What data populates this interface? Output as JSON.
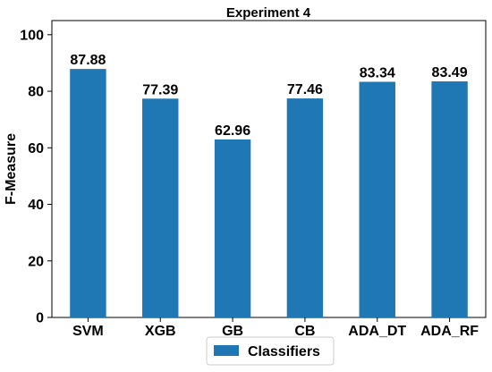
{
  "chart_data": {
    "type": "bar",
    "title": "Experiment 4",
    "xlabel": "",
    "ylabel": "F-Measure",
    "categories": [
      "SVM",
      "XGB",
      "GB",
      "CB",
      "ADA_DT",
      "ADA_RF"
    ],
    "series": [
      {
        "name": "Classifiers",
        "values": [
          87.88,
          77.39,
          62.96,
          77.46,
          83.34,
          83.49
        ],
        "color": "#1f77b4"
      }
    ],
    "data_labels": [
      "87.88",
      "77.39",
      "62.96",
      "77.46",
      "83.34",
      "83.49"
    ],
    "ylim": [
      0,
      105
    ],
    "yticks": [
      0,
      20,
      40,
      60,
      80,
      100
    ],
    "ytick_labels": [
      "0",
      "20",
      "40",
      "60",
      "80",
      "100"
    ],
    "grid": false,
    "legend_position": "bottom-center"
  }
}
